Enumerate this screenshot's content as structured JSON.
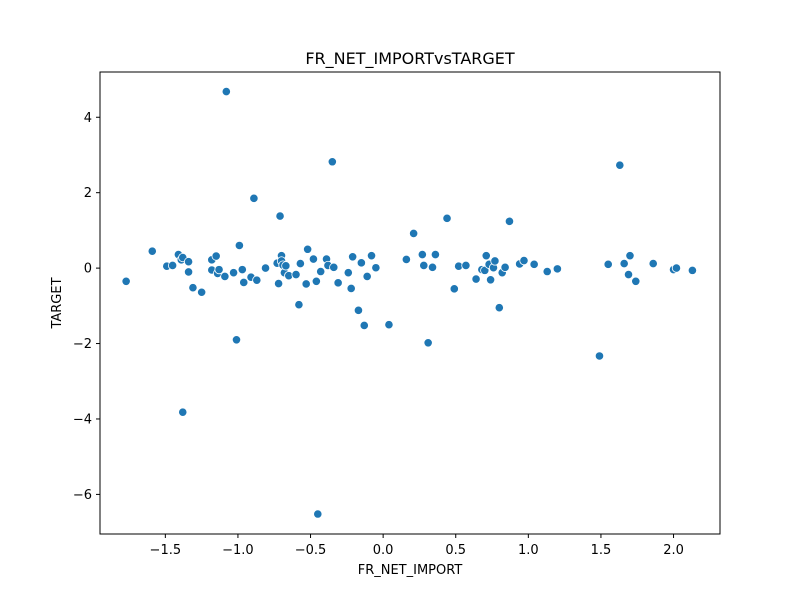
{
  "chart_data": {
    "type": "scatter",
    "title": "FR_NET_IMPORTvsTARGET",
    "xlabel": "FR_NET_IMPORT",
    "ylabel": "TARGET",
    "xlim": [
      -1.95,
      2.32
    ],
    "ylim": [
      -7.05,
      5.2
    ],
    "xticks": [
      -1.5,
      -1.0,
      -0.5,
      0.0,
      0.5,
      1.0,
      1.5,
      2.0
    ],
    "xtick_labels": [
      "−1.5",
      "−1.0",
      "−0.5",
      "0.0",
      "0.5",
      "1.0",
      "1.5",
      "2.0"
    ],
    "yticks": [
      -6,
      -4,
      -2,
      0,
      2,
      4
    ],
    "ytick_labels": [
      "−6",
      "−4",
      "−2",
      "0",
      "2",
      "4"
    ],
    "grid": false,
    "color": "#1f77b4",
    "points": [
      {
        "x": -1.77,
        "y": -0.35
      },
      {
        "x": -1.59,
        "y": 0.45
      },
      {
        "x": -1.49,
        "y": 0.05
      },
      {
        "x": -1.45,
        "y": 0.07
      },
      {
        "x": -1.41,
        "y": 0.36
      },
      {
        "x": -1.39,
        "y": 0.22
      },
      {
        "x": -1.38,
        "y": 0.28
      },
      {
        "x": -1.38,
        "y": -3.82
      },
      {
        "x": -1.34,
        "y": 0.17
      },
      {
        "x": -1.34,
        "y": -0.1
      },
      {
        "x": -1.31,
        "y": -0.52
      },
      {
        "x": -1.25,
        "y": -0.64
      },
      {
        "x": -1.18,
        "y": 0.22
      },
      {
        "x": -1.18,
        "y": -0.05
      },
      {
        "x": -1.15,
        "y": 0.32
      },
      {
        "x": -1.14,
        "y": -0.14
      },
      {
        "x": -1.13,
        "y": -0.04
      },
      {
        "x": -1.09,
        "y": -0.22
      },
      {
        "x": -1.08,
        "y": 4.68
      },
      {
        "x": -1.03,
        "y": -0.12
      },
      {
        "x": -1.01,
        "y": -1.9
      },
      {
        "x": -0.99,
        "y": 0.6
      },
      {
        "x": -0.97,
        "y": -0.04
      },
      {
        "x": -0.96,
        "y": -0.38
      },
      {
        "x": -0.91,
        "y": -0.24
      },
      {
        "x": -0.89,
        "y": 1.85
      },
      {
        "x": -0.87,
        "y": -0.32
      },
      {
        "x": -0.81,
        "y": 0.0
      },
      {
        "x": -0.73,
        "y": 0.13
      },
      {
        "x": -0.72,
        "y": -0.41
      },
      {
        "x": -0.71,
        "y": 1.38
      },
      {
        "x": -0.7,
        "y": 0.33
      },
      {
        "x": -0.7,
        "y": 0.19
      },
      {
        "x": -0.69,
        "y": 0.08
      },
      {
        "x": -0.68,
        "y": -0.12
      },
      {
        "x": -0.67,
        "y": 0.06
      },
      {
        "x": -0.65,
        "y": -0.2
      },
      {
        "x": -0.6,
        "y": -0.17
      },
      {
        "x": -0.58,
        "y": -0.97
      },
      {
        "x": -0.57,
        "y": 0.12
      },
      {
        "x": -0.53,
        "y": -0.42
      },
      {
        "x": -0.52,
        "y": 0.5
      },
      {
        "x": -0.48,
        "y": 0.24
      },
      {
        "x": -0.46,
        "y": -0.35
      },
      {
        "x": -0.45,
        "y": -6.52
      },
      {
        "x": -0.43,
        "y": -0.09
      },
      {
        "x": -0.39,
        "y": 0.24
      },
      {
        "x": -0.38,
        "y": 0.07
      },
      {
        "x": -0.35,
        "y": 2.82
      },
      {
        "x": -0.34,
        "y": 0.02
      },
      {
        "x": -0.31,
        "y": -0.39
      },
      {
        "x": -0.24,
        "y": -0.12
      },
      {
        "x": -0.22,
        "y": -0.54
      },
      {
        "x": -0.21,
        "y": 0.3
      },
      {
        "x": -0.17,
        "y": -1.12
      },
      {
        "x": -0.15,
        "y": 0.14
      },
      {
        "x": -0.13,
        "y": -1.52
      },
      {
        "x": -0.11,
        "y": -0.22
      },
      {
        "x": -0.08,
        "y": 0.33
      },
      {
        "x": -0.05,
        "y": 0.01
      },
      {
        "x": 0.04,
        "y": -1.5
      },
      {
        "x": 0.16,
        "y": 0.23
      },
      {
        "x": 0.21,
        "y": 0.92
      },
      {
        "x": 0.27,
        "y": 0.36
      },
      {
        "x": 0.28,
        "y": 0.07
      },
      {
        "x": 0.31,
        "y": -1.98
      },
      {
        "x": 0.34,
        "y": 0.02
      },
      {
        "x": 0.36,
        "y": 0.36
      },
      {
        "x": 0.44,
        "y": 1.32
      },
      {
        "x": 0.49,
        "y": -0.55
      },
      {
        "x": 0.52,
        "y": 0.05
      },
      {
        "x": 0.57,
        "y": 0.07
      },
      {
        "x": 0.64,
        "y": -0.29
      },
      {
        "x": 0.68,
        "y": -0.04
      },
      {
        "x": 0.7,
        "y": -0.06
      },
      {
        "x": 0.71,
        "y": 0.33
      },
      {
        "x": 0.73,
        "y": 0.1
      },
      {
        "x": 0.74,
        "y": -0.31
      },
      {
        "x": 0.76,
        "y": 0.01
      },
      {
        "x": 0.77,
        "y": 0.19
      },
      {
        "x": 0.8,
        "y": -1.05
      },
      {
        "x": 0.82,
        "y": -0.12
      },
      {
        "x": 0.84,
        "y": 0.02
      },
      {
        "x": 0.87,
        "y": 1.24
      },
      {
        "x": 0.94,
        "y": 0.11
      },
      {
        "x": 0.97,
        "y": 0.2
      },
      {
        "x": 1.04,
        "y": 0.1
      },
      {
        "x": 1.13,
        "y": -0.09
      },
      {
        "x": 1.2,
        "y": -0.02
      },
      {
        "x": 1.49,
        "y": -2.33
      },
      {
        "x": 1.55,
        "y": 0.1
      },
      {
        "x": 1.63,
        "y": 2.73
      },
      {
        "x": 1.66,
        "y": 0.12
      },
      {
        "x": 1.69,
        "y": -0.17
      },
      {
        "x": 1.7,
        "y": 0.33
      },
      {
        "x": 1.74,
        "y": -0.35
      },
      {
        "x": 1.86,
        "y": 0.12
      },
      {
        "x": 2.0,
        "y": -0.04
      },
      {
        "x": 2.02,
        "y": 0.0
      },
      {
        "x": 2.13,
        "y": -0.06
      }
    ]
  }
}
